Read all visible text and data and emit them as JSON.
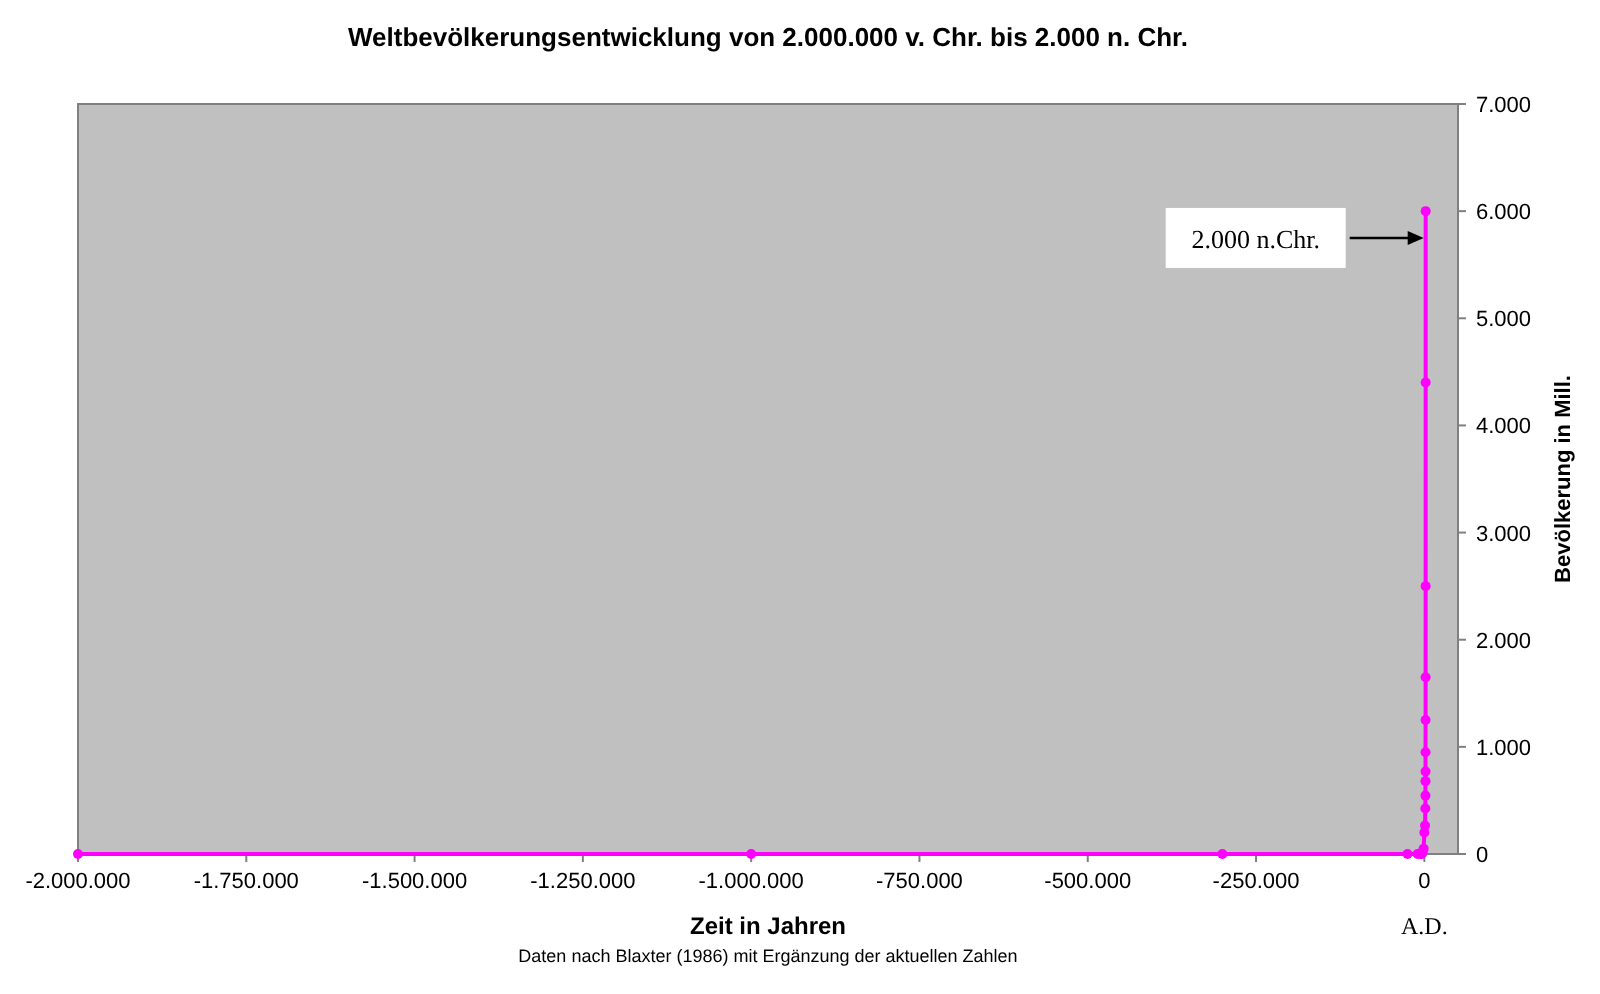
{
  "chart_data": {
    "type": "line",
    "title": "Weltbevölkerungsentwicklung von  2.000.000 v. Chr. bis 2.000 n. Chr.",
    "xlabel": "Zeit in Jahren",
    "ylabel": "Bevölkerung in Mill.",
    "x": [
      -2000000,
      -1000000,
      -300000,
      -25000,
      -10000,
      -5000,
      -4000,
      -3000,
      -2000,
      -1000,
      0,
      1000,
      1500,
      1650,
      1700,
      1750,
      1800,
      1850,
      1900,
      1950,
      1980,
      2000
    ],
    "series": [
      {
        "color": "#ff00ff",
        "values": [
          0,
          0,
          0,
          0,
          0,
          0,
          0,
          10,
          30,
          50,
          200,
          265,
          425,
          545,
          680,
          770,
          950,
          1250,
          1650,
          2500,
          4400,
          6000
        ]
      }
    ],
    "xlim": [
      -2000000,
      50000
    ],
    "xticks": [
      {
        "value": -2000000,
        "label": "-2.000.000"
      },
      {
        "value": -1750000,
        "label": "-1.750.000"
      },
      {
        "value": -1500000,
        "label": "-1.500.000"
      },
      {
        "value": -1250000,
        "label": "-1.250.000"
      },
      {
        "value": -1000000,
        "label": "-1.000.000"
      },
      {
        "value": -750000,
        "label": "-750.000"
      },
      {
        "value": -500000,
        "label": "-500.000"
      },
      {
        "value": -250000,
        "label": "-250.000"
      },
      0
    ],
    "ylim": [
      0,
      7000
    ],
    "yticks": [
      0,
      {
        "value": 1000,
        "label": "1.000"
      },
      {
        "value": 2000,
        "label": "2.000"
      },
      {
        "value": 3000,
        "label": "3.000"
      },
      {
        "value": 4000,
        "label": "4.000"
      },
      {
        "value": 5000,
        "label": "5.000"
      },
      {
        "value": 6000,
        "label": "6.000"
      },
      {
        "value": 7000,
        "label": "7.000"
      }
    ],
    "marker": "circle",
    "line_style": "solid",
    "grid": false,
    "annotations": [
      {
        "text": "2.000 n.Chr.",
        "x": 2000,
        "y": 5750
      },
      "A.D.",
      "Daten nach Blaxter (1986) mit Ergänzung der aktuellen Zahlen"
    ]
  }
}
